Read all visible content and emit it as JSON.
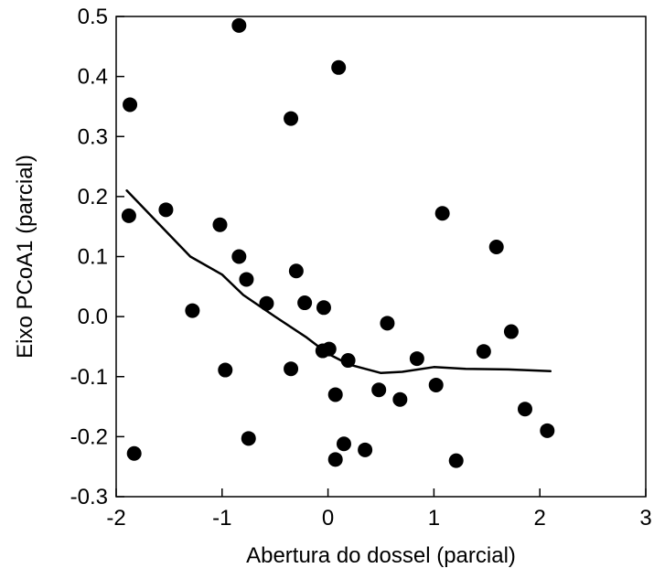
{
  "chart_data": {
    "type": "scatter",
    "title": "",
    "xlabel": "Abertura do dossel (parcial)",
    "ylabel": "Eixo PCoA1 (parcial)",
    "xlim": [
      -2,
      3
    ],
    "ylim": [
      -0.3,
      0.5
    ],
    "x_ticks": [
      {
        "value": -2,
        "label": "-2"
      },
      {
        "value": -1,
        "label": "-1"
      },
      {
        "value": 0,
        "label": "0"
      },
      {
        "value": 1,
        "label": "1"
      },
      {
        "value": 2,
        "label": "2"
      },
      {
        "value": 3,
        "label": "3"
      }
    ],
    "y_ticks": [
      {
        "value": -0.3,
        "label": "-0.3"
      },
      {
        "value": -0.2,
        "label": "-0.2"
      },
      {
        "value": -0.1,
        "label": "-0.1"
      },
      {
        "value": 0.0,
        "label": "0.0"
      },
      {
        "value": 0.1,
        "label": "0.1"
      },
      {
        "value": 0.2,
        "label": "0.2"
      },
      {
        "value": 0.3,
        "label": "0.3"
      },
      {
        "value": 0.4,
        "label": "0.4"
      },
      {
        "value": 0.5,
        "label": "0.5"
      }
    ],
    "grid": false,
    "series": [
      {
        "kind": "points",
        "color": "#000000",
        "points": [
          {
            "x": -1.87,
            "y": 0.353
          },
          {
            "x": -1.88,
            "y": 0.168
          },
          {
            "x": -1.83,
            "y": -0.228
          },
          {
            "x": -1.53,
            "y": 0.178
          },
          {
            "x": -1.28,
            "y": 0.01
          },
          {
            "x": -1.02,
            "y": 0.153
          },
          {
            "x": -0.97,
            "y": -0.089
          },
          {
            "x": -0.84,
            "y": 0.485
          },
          {
            "x": -0.84,
            "y": 0.1
          },
          {
            "x": -0.77,
            "y": 0.062
          },
          {
            "x": -0.75,
            "y": -0.203
          },
          {
            "x": -0.58,
            "y": 0.022
          },
          {
            "x": -0.35,
            "y": 0.33
          },
          {
            "x": -0.35,
            "y": -0.087
          },
          {
            "x": -0.3,
            "y": 0.076
          },
          {
            "x": -0.22,
            "y": 0.023
          },
          {
            "x": -0.04,
            "y": 0.015
          },
          {
            "x": -0.05,
            "y": -0.057
          },
          {
            "x": 0.01,
            "y": -0.054
          },
          {
            "x": 0.07,
            "y": -0.13
          },
          {
            "x": 0.07,
            "y": -0.238
          },
          {
            "x": 0.1,
            "y": 0.415
          },
          {
            "x": 0.15,
            "y": -0.212
          },
          {
            "x": 0.19,
            "y": -0.073
          },
          {
            "x": 0.35,
            "y": -0.222
          },
          {
            "x": 0.48,
            "y": -0.122
          },
          {
            "x": 0.56,
            "y": -0.011
          },
          {
            "x": 0.68,
            "y": -0.138
          },
          {
            "x": 0.84,
            "y": -0.07
          },
          {
            "x": 1.02,
            "y": -0.114
          },
          {
            "x": 1.08,
            "y": 0.172
          },
          {
            "x": 1.21,
            "y": -0.24
          },
          {
            "x": 1.47,
            "y": -0.058
          },
          {
            "x": 1.59,
            "y": 0.116
          },
          {
            "x": 1.73,
            "y": -0.025
          },
          {
            "x": 1.86,
            "y": -0.154
          },
          {
            "x": 2.07,
            "y": -0.19
          }
        ]
      },
      {
        "kind": "line",
        "color": "#000000",
        "points": [
          {
            "x": -1.9,
            "y": 0.21
          },
          {
            "x": -1.6,
            "y": 0.155
          },
          {
            "x": -1.3,
            "y": 0.1
          },
          {
            "x": -1.0,
            "y": 0.07
          },
          {
            "x": -0.8,
            "y": 0.036
          },
          {
            "x": -0.5,
            "y": 0.0
          },
          {
            "x": -0.2,
            "y": -0.035
          },
          {
            "x": 0.0,
            "y": -0.062
          },
          {
            "x": 0.2,
            "y": -0.08
          },
          {
            "x": 0.5,
            "y": -0.094
          },
          {
            "x": 0.7,
            "y": -0.092
          },
          {
            "x": 1.0,
            "y": -0.084
          },
          {
            "x": 1.3,
            "y": -0.087
          },
          {
            "x": 1.7,
            "y": -0.088
          },
          {
            "x": 2.1,
            "y": -0.091
          }
        ]
      }
    ]
  }
}
